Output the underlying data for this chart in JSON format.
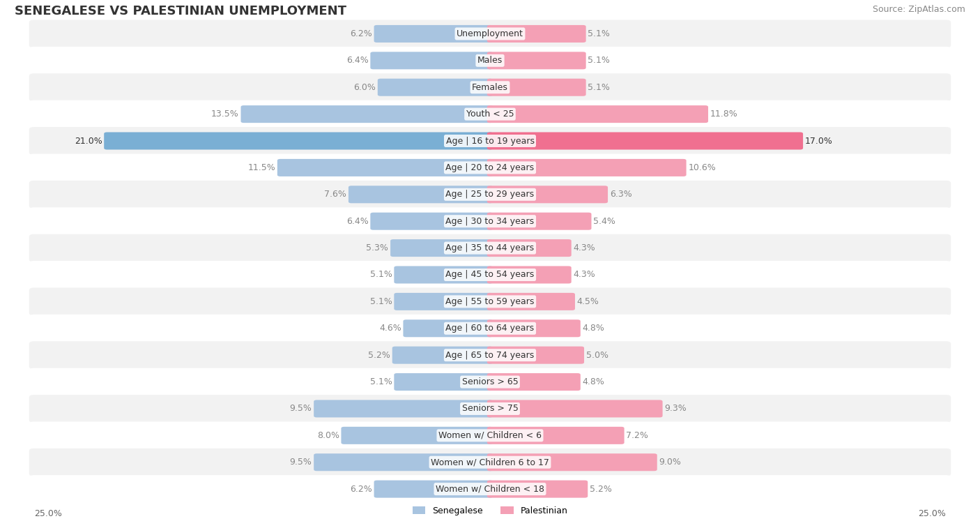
{
  "title": "SENEGALESE VS PALESTINIAN UNEMPLOYMENT",
  "source": "Source: ZipAtlas.com",
  "categories": [
    "Unemployment",
    "Males",
    "Females",
    "Youth < 25",
    "Age | 16 to 19 years",
    "Age | 20 to 24 years",
    "Age | 25 to 29 years",
    "Age | 30 to 34 years",
    "Age | 35 to 44 years",
    "Age | 45 to 54 years",
    "Age | 55 to 59 years",
    "Age | 60 to 64 years",
    "Age | 65 to 74 years",
    "Seniors > 65",
    "Seniors > 75",
    "Women w/ Children < 6",
    "Women w/ Children 6 to 17",
    "Women w/ Children < 18"
  ],
  "senegalese": [
    6.2,
    6.4,
    6.0,
    13.5,
    21.0,
    11.5,
    7.6,
    6.4,
    5.3,
    5.1,
    5.1,
    4.6,
    5.2,
    5.1,
    9.5,
    8.0,
    9.5,
    6.2
  ],
  "palestinian": [
    5.1,
    5.1,
    5.1,
    11.8,
    17.0,
    10.6,
    6.3,
    5.4,
    4.3,
    4.3,
    4.5,
    4.8,
    5.0,
    4.8,
    9.3,
    7.2,
    9.0,
    5.2
  ],
  "senegalese_color": "#a8c4e0",
  "palestinian_color": "#f4a0b5",
  "row_bg_light": "#f0f0f0",
  "row_bg_white": "#ffffff",
  "highlight_senegalese": "#7aafd4",
  "highlight_palestinian": "#f07090",
  "highlight_rows": [
    4
  ],
  "axis_max": 25.0,
  "label_color_normal": "#888888",
  "label_color_highlight": "#ffffff",
  "title_fontsize": 13,
  "source_fontsize": 9,
  "bar_label_fontsize": 9,
  "category_fontsize": 9
}
